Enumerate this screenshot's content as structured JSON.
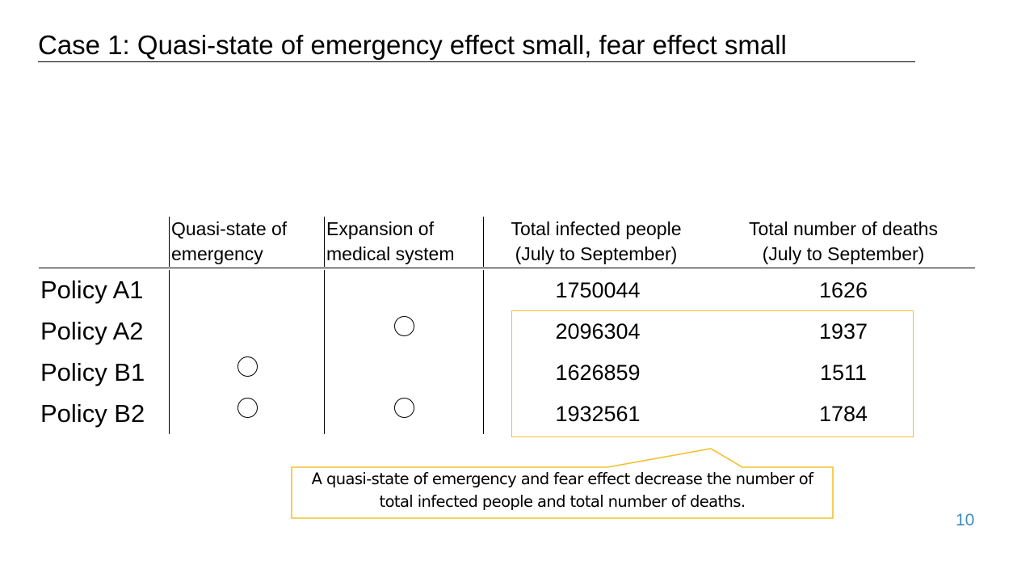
{
  "slide": {
    "title": "Case 1: Quasi-state of emergency effect small,  fear effect small",
    "page_number": "10"
  },
  "table": {
    "headers": [
      {
        "line1": "Quasi-state of",
        "line2": "emergency"
      },
      {
        "line1": "Expansion of",
        "line2": "medical system"
      },
      {
        "line1": "Total infected people",
        "line2": "(July to September)"
      },
      {
        "line1": "Total number of deaths",
        "line2": "(July to September)"
      }
    ],
    "rows": [
      {
        "label": "Policy A1",
        "quasi_state": false,
        "medical_expansion": false,
        "infected": "1750044",
        "deaths": "1626"
      },
      {
        "label": "Policy A2",
        "quasi_state": false,
        "medical_expansion": true,
        "infected": "2096304",
        "deaths": "1937"
      },
      {
        "label": "Policy B1",
        "quasi_state": true,
        "medical_expansion": false,
        "infected": "1626859",
        "deaths": "1511"
      },
      {
        "label": "Policy B2",
        "quasi_state": true,
        "medical_expansion": true,
        "infected": "1932561",
        "deaths": "1784"
      }
    ],
    "mark_icon": "circle-mark-icon"
  },
  "callout": {
    "line1": "A quasi-state of emergency and fear effect decrease the number of",
    "line2": "total infected people and total number of deaths.",
    "accent_color": "#f2c12e"
  },
  "colors": {
    "page_number": "#3f8fbd",
    "highlight": "#f2c12e"
  }
}
